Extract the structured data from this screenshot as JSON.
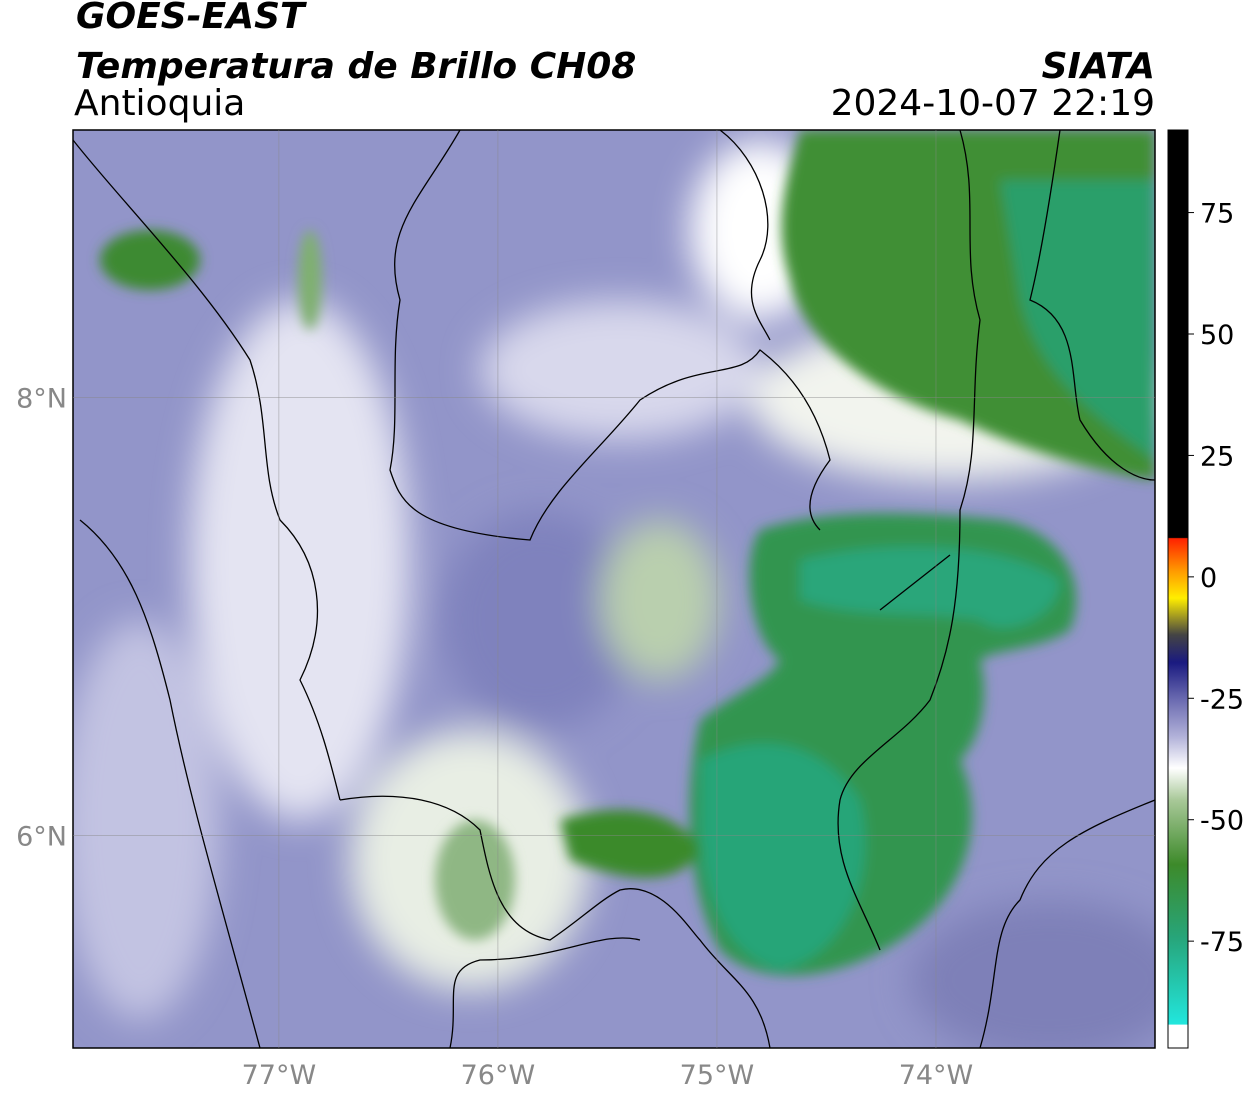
{
  "header": {
    "title": "GOES-EAST",
    "subtitle": "Temperatura de Brillo CH08",
    "region": "Antioquia",
    "source": "SIATA",
    "datetime": "2024-10-07 22:19"
  },
  "map": {
    "lon_range": [
      -77.94,
      -73.0
    ],
    "lat_range": [
      5.03,
      9.22
    ],
    "lon_ticks": [
      {
        "value": -77,
        "label": "77°W"
      },
      {
        "value": -76,
        "label": "76°W"
      },
      {
        "value": -75,
        "label": "75°W"
      },
      {
        "value": -74,
        "label": "74°W"
      }
    ],
    "lat_ticks": [
      {
        "value": 8,
        "label": "8°N"
      },
      {
        "value": 6,
        "label": "6°N"
      }
    ]
  },
  "colorbar": {
    "range": [
      -97,
      92
    ],
    "ticks": [
      75,
      50,
      25,
      0,
      -25,
      -50,
      -75
    ]
  }
}
